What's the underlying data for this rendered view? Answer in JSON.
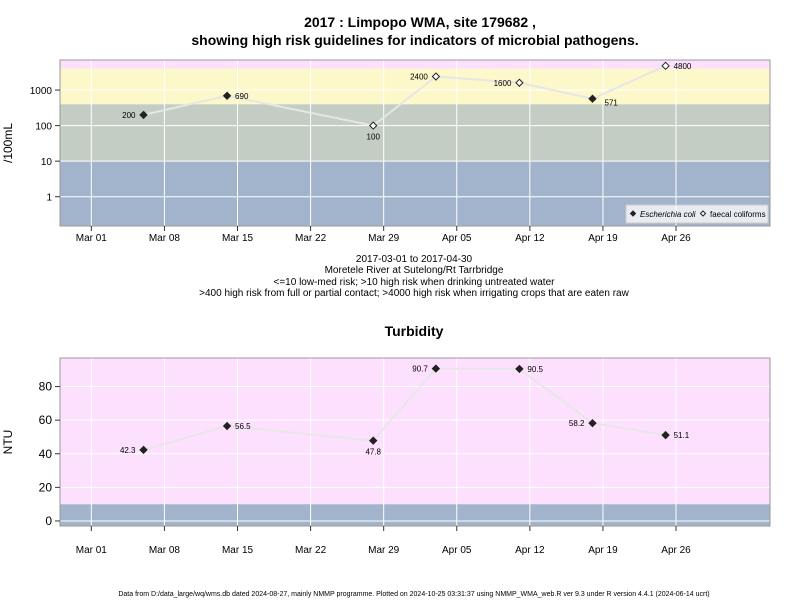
{
  "header": {
    "title_line1": "2017 : Limpopo WMA, site 179682 ,",
    "title_line2": "showing high risk guidelines for indicators of microbial pathogens."
  },
  "subtitle_lines": [
    "2017-03-01 to 2017-04-30",
    "Moretele River at Sutelong/Rt Tarrbridge",
    "<=10 low-med risk; >10 high risk when drinking untreated water",
    ">400 high risk from full or partial contact; >4000 high risk when irrigating crops that are eaten raw"
  ],
  "footer": "Data from D:/data_large/wq/wms.db dated 2024-08-27, mainly NMMP programme. Plotted on 2024-10-25 03:31:37 using NMMP_WMA_web.R ver 9.3 under R version 4.4.1 (2024-06-14 ucrt)",
  "colors": {
    "band_blue": "#a2b3cc",
    "band_green": "#c3cdc3",
    "band_yellow": "#fdf8c9",
    "band_pink": "#fde0fd",
    "grid": "#ffffff",
    "line": "#e6e6e6",
    "border": "#999999"
  },
  "chart_data": [
    {
      "type": "line",
      "title": "",
      "ylabel": "/100mL",
      "yscale": "log",
      "ylim": [
        0.15,
        7000
      ],
      "y_ticks": [
        1,
        10,
        100,
        1000
      ],
      "y_tick_labels": [
        "1",
        "10",
        "100",
        "1000"
      ],
      "x_range": [
        "2017-02-26",
        "2017-05-05"
      ],
      "x_ticks": [
        "2017-03-01",
        "2017-03-08",
        "2017-03-15",
        "2017-03-22",
        "2017-03-29",
        "2017-04-05",
        "2017-04-12",
        "2017-04-19",
        "2017-04-26"
      ],
      "x_tick_labels": [
        "Mar 01",
        "Mar 08",
        "Mar 15",
        "Mar 22",
        "Mar 29",
        "Apr 05",
        "Apr 12",
        "Apr 19",
        "Apr 26"
      ],
      "bands": [
        {
          "from": 0.15,
          "to": 10,
          "color": "#a2b3cc"
        },
        {
          "from": 10,
          "to": 400,
          "color": "#c3cdc3"
        },
        {
          "from": 400,
          "to": 4000,
          "color": "#fdf8c9"
        },
        {
          "from": 4000,
          "to": 7000,
          "color": "#fde0fd"
        }
      ],
      "legend": {
        "position": "bottom-right",
        "entries": [
          "Escherichia coli",
          "faecal coliforms"
        ]
      },
      "points": [
        {
          "date": "2017-03-06",
          "value": 200,
          "label": "200",
          "series": "Escherichia coli",
          "label_side": "left"
        },
        {
          "date": "2017-03-14",
          "value": 690,
          "label": "690",
          "series": "Escherichia coli",
          "label_side": "right"
        },
        {
          "date": "2017-03-28",
          "value": 100,
          "label": "100",
          "series": "faecal coliforms",
          "label_side": "below"
        },
        {
          "date": "2017-04-03",
          "value": 2400,
          "label": "2400",
          "series": "faecal coliforms",
          "label_side": "left"
        },
        {
          "date": "2017-04-11",
          "value": 1600,
          "label": "1600",
          "series": "faecal coliforms",
          "label_side": "left"
        },
        {
          "date": "2017-04-18",
          "value": 571,
          "label": "571",
          "series": "Escherichia coli",
          "label_side": "belowright"
        },
        {
          "date": "2017-04-25",
          "value": 4800,
          "label": "4800",
          "series": "faecal coliforms",
          "label_side": "right"
        }
      ]
    },
    {
      "type": "line",
      "title": "Turbidity",
      "ylabel": "NTU",
      "yscale": "linear",
      "ylim": [
        -3,
        97
      ],
      "y_ticks": [
        0,
        20,
        40,
        60,
        80
      ],
      "y_tick_labels": [
        "0",
        "20",
        "40",
        "60",
        "80"
      ],
      "x_range": [
        "2017-02-26",
        "2017-05-05"
      ],
      "x_ticks": [
        "2017-03-01",
        "2017-03-08",
        "2017-03-15",
        "2017-03-22",
        "2017-03-29",
        "2017-04-05",
        "2017-04-12",
        "2017-04-19",
        "2017-04-26"
      ],
      "x_tick_labels": [
        "Mar 01",
        "Mar 08",
        "Mar 15",
        "Mar 22",
        "Mar 29",
        "Apr 05",
        "Apr 12",
        "Apr 19",
        "Apr 26"
      ],
      "bands": [
        {
          "from": -3,
          "to": 10,
          "color": "#a2b3cc"
        },
        {
          "from": 10,
          "to": 97,
          "color": "#fde0fd"
        }
      ],
      "points": [
        {
          "date": "2017-03-06",
          "value": 42.3,
          "label": "42.3",
          "label_side": "left"
        },
        {
          "date": "2017-03-14",
          "value": 56.5,
          "label": "56.5",
          "label_side": "right"
        },
        {
          "date": "2017-03-28",
          "value": 47.8,
          "label": "47.8",
          "label_side": "below"
        },
        {
          "date": "2017-04-03",
          "value": 90.7,
          "label": "90.7",
          "label_side": "left"
        },
        {
          "date": "2017-04-11",
          "value": 90.5,
          "label": "90.5",
          "label_side": "right"
        },
        {
          "date": "2017-04-18",
          "value": 58.2,
          "label": "58.2",
          "label_side": "left"
        },
        {
          "date": "2017-04-25",
          "value": 51.1,
          "label": "51.1",
          "label_side": "right"
        }
      ]
    }
  ]
}
